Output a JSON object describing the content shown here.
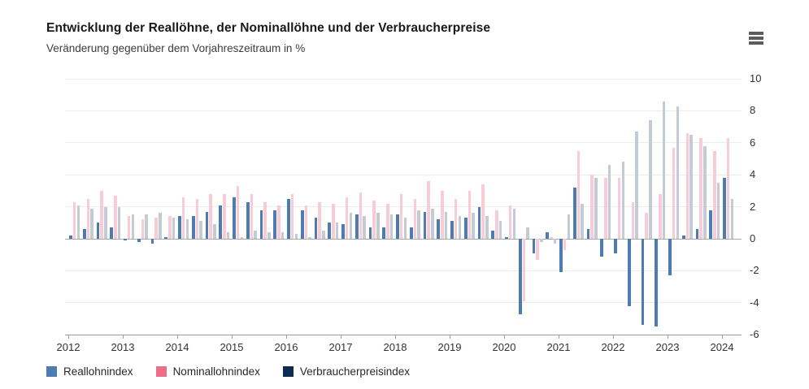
{
  "header": {
    "title": "Entwicklung der Reallöhne, der Nominallöhne und der Verbraucherpreise",
    "subtitle": "Veränderung gegenüber dem Vorjahreszeitraum in %"
  },
  "menu": {
    "icon": "hamburger-icon",
    "color": "#5c5c5c"
  },
  "chart_data": {
    "type": "bar",
    "title": "Entwicklung der Reallöhne, der Nominallöhne und der Verbraucherpreise",
    "subtitle": "Veränderung gegenüber dem Vorjahreszeitraum in %",
    "unit": "%",
    "grid": true,
    "legend_position": "bottom",
    "ylim": [
      -6,
      10
    ],
    "y_ticks": [
      10,
      8,
      6,
      4,
      2,
      0,
      -2,
      -4,
      -6
    ],
    "x_tick_labels": [
      "2012",
      "2013",
      "2014",
      "2015",
      "2016",
      "2017",
      "2018",
      "2019",
      "2020",
      "2021",
      "2022",
      "2023",
      "2024"
    ],
    "categories": [
      "Q1 2012",
      "Q2 2012",
      "Q3 2012",
      "Q4 2012",
      "Q1 2013",
      "Q2 2013",
      "Q3 2013",
      "Q4 2013",
      "Q1 2014",
      "Q2 2014",
      "Q3 2014",
      "Q4 2014",
      "Q1 2015",
      "Q2 2015",
      "Q3 2015",
      "Q4 2015",
      "Q1 2016",
      "Q2 2016",
      "Q3 2016",
      "Q4 2016",
      "Q1 2017",
      "Q2 2017",
      "Q3 2017",
      "Q4 2017",
      "Q1 2018",
      "Q2 2018",
      "Q3 2018",
      "Q4 2018",
      "Q1 2019",
      "Q2 2019",
      "Q3 2019",
      "Q4 2019",
      "Q1 2020",
      "Q2 2020",
      "Q3 2020",
      "Q4 2020",
      "Q1 2021",
      "Q2 2021",
      "Q3 2021",
      "Q4 2021",
      "Q1 2022",
      "Q2 2022",
      "Q3 2022",
      "Q4 2022",
      "Q1 2023",
      "Q2 2023",
      "Q3 2023",
      "Q4 2023",
      "Q1 2024"
    ],
    "series": [
      {
        "name": "Reallohnindex",
        "legend_color": "#4d7cb4",
        "bar_color": "#4d7cb4",
        "values": [
          0.2,
          0.6,
          1.0,
          0.7,
          -0.1,
          -0.2,
          -0.3,
          0.1,
          1.4,
          1.4,
          1.7,
          2.1,
          2.6,
          2.3,
          1.8,
          1.8,
          2.5,
          1.8,
          1.3,
          1.0,
          0.9,
          1.5,
          0.7,
          0.7,
          1.5,
          0.7,
          1.7,
          1.2,
          1.1,
          1.3,
          2.0,
          0.5,
          0.1,
          -4.7,
          -0.9,
          0.4,
          -2.1,
          3.2,
          0.6,
          -1.1,
          -0.9,
          -4.2,
          -5.4,
          -5.5,
          -2.3,
          0.2,
          0.6,
          1.8,
          3.8
        ]
      },
      {
        "name": "Nominallohnindex",
        "legend_color": "#ee6e87",
        "bar_color": "#f8ccd7",
        "values": [
          2.3,
          2.5,
          3.0,
          2.7,
          1.4,
          1.2,
          1.3,
          1.4,
          2.6,
          2.5,
          2.8,
          2.8,
          3.3,
          2.8,
          2.3,
          2.1,
          2.8,
          2.1,
          2.3,
          2.2,
          2.6,
          2.9,
          2.4,
          2.2,
          2.8,
          2.5,
          3.6,
          3.0,
          2.5,
          3.0,
          3.4,
          1.8,
          2.1,
          -3.9,
          -1.3,
          0.1,
          -0.7,
          5.5,
          4.0,
          3.8,
          3.8,
          2.3,
          1.6,
          2.8,
          5.7,
          6.6,
          6.3,
          5.5,
          6.3
        ]
      },
      {
        "name": "Verbraucherpreisindex",
        "legend_color": "#0e2b52",
        "bar_color": "#c4cbd5",
        "values": [
          2.1,
          1.9,
          2.0,
          2.0,
          1.5,
          1.5,
          1.6,
          1.3,
          1.2,
          1.1,
          0.9,
          0.4,
          0.1,
          0.5,
          0.4,
          0.4,
          0.3,
          0.1,
          0.5,
          1.0,
          1.6,
          1.4,
          1.6,
          1.5,
          1.3,
          1.8,
          1.9,
          1.7,
          1.4,
          1.6,
          1.4,
          1.1,
          1.9,
          0.7,
          -0.2,
          -0.3,
          1.5,
          2.2,
          3.8,
          4.6,
          4.8,
          6.7,
          7.4,
          8.6,
          8.3,
          6.5,
          5.8,
          3.5,
          2.5
        ]
      }
    ]
  }
}
